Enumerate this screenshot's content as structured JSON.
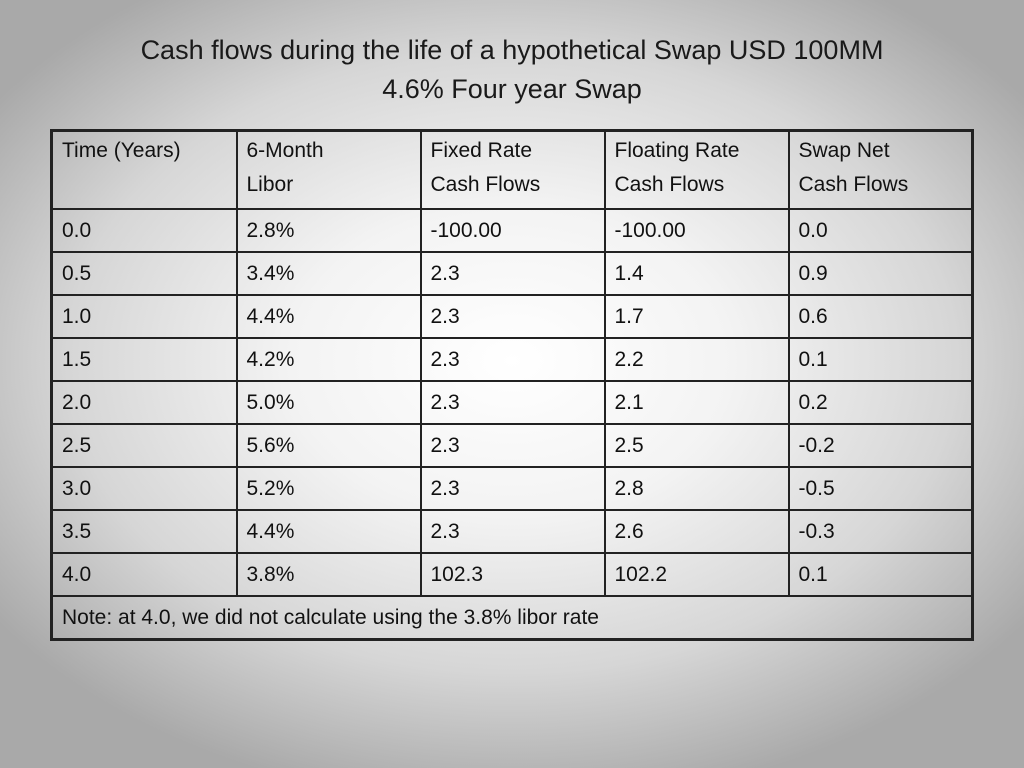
{
  "title": {
    "line1": "Cash flows during the life of a hypothetical Swap USD 100MM",
    "line2": "4.6% Four year Swap"
  },
  "table": {
    "headers": [
      [
        "Time (Years)"
      ],
      [
        "6-Month",
        "Libor"
      ],
      [
        "Fixed Rate",
        "Cash Flows"
      ],
      [
        "Floating Rate",
        "Cash Flows"
      ],
      [
        "Swap Net",
        "Cash Flows"
      ]
    ],
    "rows": [
      [
        "0.0",
        "2.8%",
        "-100.00",
        "-100.00",
        "0.0"
      ],
      [
        "0.5",
        "3.4%",
        "2.3",
        "1.4",
        "0.9"
      ],
      [
        "1.0",
        "4.4%",
        "2.3",
        "1.7",
        "0.6"
      ],
      [
        "1.5",
        "4.2%",
        "2.3",
        "2.2",
        "0.1"
      ],
      [
        "2.0",
        "5.0%",
        "2.3",
        "2.1",
        "0.2"
      ],
      [
        "2.5",
        "5.6%",
        "2.3",
        "2.5",
        "-0.2"
      ],
      [
        "3.0",
        "5.2%",
        "2.3",
        "2.8",
        "-0.5"
      ],
      [
        "3.5",
        "4.4%",
        "2.3",
        "2.6",
        "-0.3"
      ],
      [
        "4.0",
        "3.8%",
        "102.3",
        "102.2",
        "0.1"
      ]
    ],
    "note": "Note: at 4.0, we did not calculate using the 3.8% libor rate"
  }
}
